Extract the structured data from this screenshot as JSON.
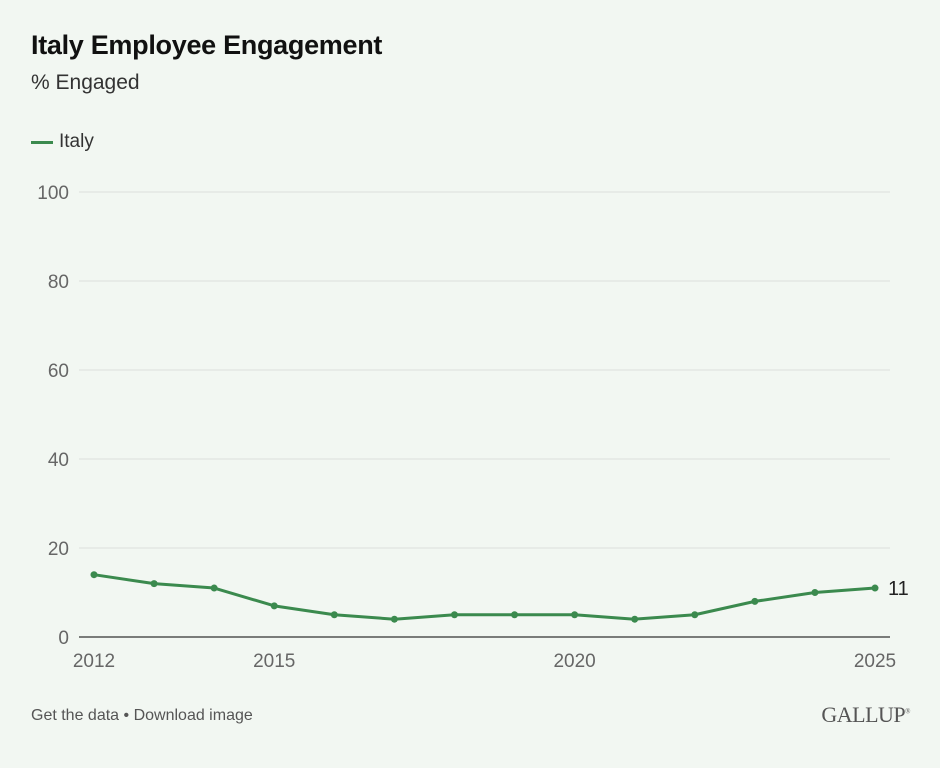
{
  "header": {
    "title": "Italy Employee Engagement",
    "subtitle": "% Engaged"
  },
  "legend": [
    {
      "label": "Italy",
      "color": "#3b8a4e"
    }
  ],
  "footer": {
    "get_data": "Get the data",
    "separator": "•",
    "download": "Download image",
    "logo": "GALLUP",
    "logo_mark": "®"
  },
  "chart_data": {
    "type": "line",
    "title": "Italy Employee Engagement",
    "subtitle": "% Engaged",
    "xlabel": "",
    "ylabel": "",
    "x": [
      2012,
      2013,
      2014,
      2015,
      2016,
      2017,
      2018,
      2019,
      2020,
      2021,
      2022,
      2023,
      2024,
      2025
    ],
    "series": [
      {
        "name": "Italy",
        "color": "#3b8a4e",
        "values": [
          14,
          12,
          11,
          7,
          5,
          4,
          5,
          5,
          5,
          4,
          5,
          8,
          10,
          11
        ]
      }
    ],
    "ylim": [
      0,
      100
    ],
    "xlim": [
      2012,
      2025
    ],
    "yticks": [
      0,
      20,
      40,
      60,
      80,
      100
    ],
    "xticks": [
      2012,
      2015,
      2020,
      2025
    ],
    "grid": true,
    "legend_position": "top-left",
    "end_label": "11"
  }
}
